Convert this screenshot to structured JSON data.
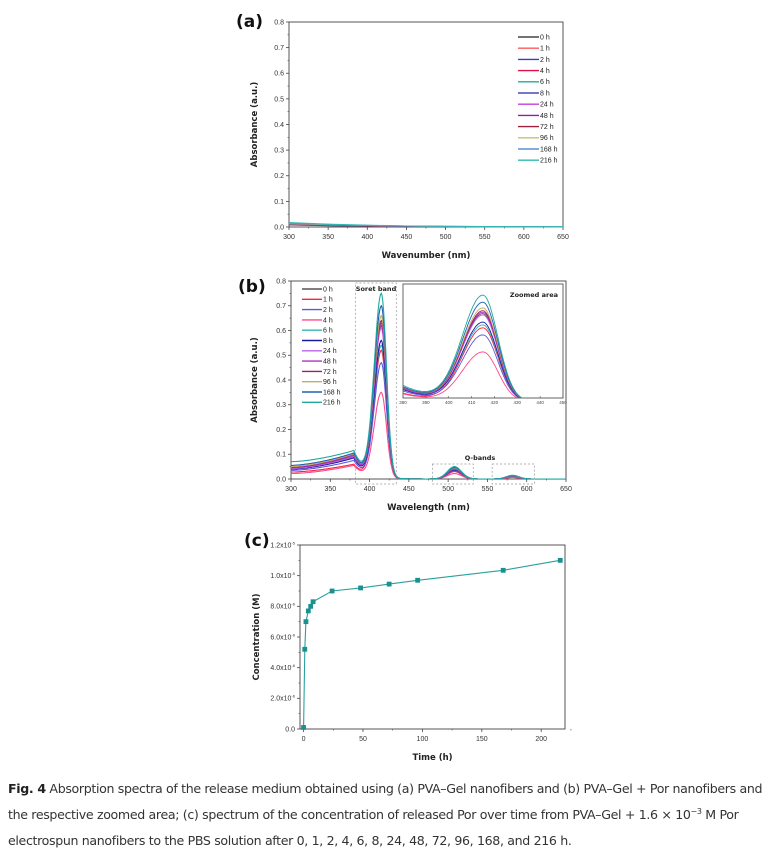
{
  "figure_caption": {
    "label": "Fig. 4",
    "text_part1": " Absorption spectra of the release medium obtained using (a) PVA–Gel nanofibers and (b) PVA–Gel + Por nanofibers and the respective zoomed area; (c) spectrum of the concentration of released Por over time from PVA–Gel + 1.6 × 10",
    "superscript": "−3",
    "text_part2": " M Por electrospun nanofibers to the PBS solution after 0, 1, 2, 4, 6, 8, 24, 48, 72, 96, 168, and 216 h."
  },
  "chart_data": [
    {
      "panel": "(a)",
      "type": "line",
      "title": "",
      "xlabel": "Wavenumber (nm)",
      "ylabel": "Absorbance (a.u.)",
      "xlim": [
        300,
        650
      ],
      "ylim": [
        0.0,
        0.8
      ],
      "xticks": [
        "300",
        "350",
        "400",
        "450",
        "500",
        "550",
        "600",
        "650"
      ],
      "yticks": [
        "0.0",
        "0.1",
        "0.2",
        "0.3",
        "0.4",
        "0.5",
        "0.6",
        "0.7",
        "0.8"
      ],
      "legend_position": "top-right",
      "x": [
        300,
        350,
        400,
        450,
        500,
        550,
        600,
        650
      ],
      "series": [
        {
          "name": "0 h",
          "color": "#444444",
          "values": [
            0.008,
            0.005,
            0.003,
            0.002,
            0.001,
            0.001,
            0.0,
            0.0
          ]
        },
        {
          "name": "1 h",
          "color": "#ff5a5a",
          "values": [
            0.009,
            0.006,
            0.004,
            0.002,
            0.001,
            0.001,
            0.0,
            0.0
          ]
        },
        {
          "name": "2 h",
          "color": "#3a3ad0",
          "values": [
            0.01,
            0.006,
            0.004,
            0.002,
            0.001,
            0.001,
            0.0,
            0.0
          ]
        },
        {
          "name": "4 h",
          "color": "#e0104a",
          "values": [
            0.01,
            0.007,
            0.004,
            0.002,
            0.001,
            0.001,
            0.0,
            0.0
          ]
        },
        {
          "name": "6 h",
          "color": "#2aa89a",
          "values": [
            0.011,
            0.007,
            0.004,
            0.003,
            0.002,
            0.001,
            0.001,
            0.0
          ]
        },
        {
          "name": "8 h",
          "color": "#4a4ab0",
          "values": [
            0.011,
            0.007,
            0.005,
            0.003,
            0.002,
            0.001,
            0.001,
            0.0
          ]
        },
        {
          "name": "24 h",
          "color": "#c040e0",
          "values": [
            0.012,
            0.008,
            0.005,
            0.003,
            0.002,
            0.001,
            0.001,
            0.0
          ]
        },
        {
          "name": "48 h",
          "color": "#8a20b0",
          "values": [
            0.012,
            0.008,
            0.005,
            0.003,
            0.002,
            0.001,
            0.001,
            0.0
          ]
        },
        {
          "name": "72 h",
          "color": "#a02040",
          "values": [
            0.013,
            0.008,
            0.005,
            0.003,
            0.002,
            0.001,
            0.001,
            0.0
          ]
        },
        {
          "name": "96 h",
          "color": "#c8c070",
          "values": [
            0.013,
            0.009,
            0.006,
            0.004,
            0.002,
            0.001,
            0.001,
            0.0
          ]
        },
        {
          "name": "168 h",
          "color": "#5a90d0",
          "values": [
            0.015,
            0.01,
            0.006,
            0.004,
            0.002,
            0.002,
            0.001,
            0.0
          ]
        },
        {
          "name": "216 h",
          "color": "#30b8b0",
          "values": [
            0.017,
            0.011,
            0.007,
            0.004,
            0.003,
            0.002,
            0.001,
            0.001
          ]
        }
      ]
    },
    {
      "panel": "(b)",
      "type": "line",
      "title": "",
      "xlabel": "Wavelength (nm)",
      "ylabel": "Absorbance (a.u.)",
      "xlim": [
        300,
        650
      ],
      "ylim": [
        0.0,
        0.8
      ],
      "xticks": [
        "300",
        "350",
        "400",
        "450",
        "500",
        "550",
        "600",
        "650"
      ],
      "yticks": [
        "0.0",
        "0.1",
        "0.2",
        "0.3",
        "0.4",
        "0.5",
        "0.6",
        "0.7",
        "0.8"
      ],
      "legend_position": "top-left",
      "annotations": [
        "Soret band",
        "Q-bands",
        "Zoomed area"
      ],
      "inset": {
        "xlim": [
          380,
          450
        ],
        "xticks": [
          "380",
          "390",
          "400",
          "410",
          "420",
          "430",
          "440",
          "450"
        ]
      },
      "soret_peak_nm": 415,
      "q_band_peaks_nm": [
        508,
        582
      ],
      "series": [
        {
          "name": "0 h",
          "color": "#555555",
          "baseline_300": 0.045,
          "at_380": 0.09,
          "soret_peak": 0.62,
          "q1_peak": 0.04,
          "q2_peak": 0.012
        },
        {
          "name": "1 h",
          "color": "#ff2040",
          "baseline_300": 0.028,
          "at_380": 0.06,
          "soret_peak": 0.52,
          "q1_peak": 0.03,
          "q2_peak": 0.008
        },
        {
          "name": "2 h",
          "color": "#5a5ae0",
          "baseline_300": 0.035,
          "at_380": 0.075,
          "soret_peak": 0.47,
          "q1_peak": 0.033,
          "q2_peak": 0.01
        },
        {
          "name": "4 h",
          "color": "#ff4a8a",
          "baseline_300": 0.022,
          "at_380": 0.055,
          "soret_peak": 0.35,
          "q1_peak": 0.022,
          "q2_peak": 0.006
        },
        {
          "name": "6 h",
          "color": "#30b8b0",
          "baseline_300": 0.048,
          "at_380": 0.095,
          "soret_peak": 0.54,
          "q1_peak": 0.038,
          "q2_peak": 0.011
        },
        {
          "name": "8 h",
          "color": "#1a1aa0",
          "baseline_300": 0.04,
          "at_380": 0.085,
          "soret_peak": 0.56,
          "q1_peak": 0.037,
          "q2_peak": 0.011
        },
        {
          "name": "24 h",
          "color": "#c060f0",
          "baseline_300": 0.042,
          "at_380": 0.092,
          "soret_peak": 0.61,
          "q1_peak": 0.04,
          "q2_peak": 0.012
        },
        {
          "name": "48 h",
          "color": "#b030c0",
          "baseline_300": 0.045,
          "at_380": 0.095,
          "soret_peak": 0.63,
          "q1_peak": 0.042,
          "q2_peak": 0.012
        },
        {
          "name": "72 h",
          "color": "#a02060",
          "baseline_300": 0.048,
          "at_380": 0.1,
          "soret_peak": 0.64,
          "q1_peak": 0.043,
          "q2_peak": 0.013
        },
        {
          "name": "96 h",
          "color": "#c0b060",
          "baseline_300": 0.05,
          "at_380": 0.102,
          "soret_peak": 0.66,
          "q1_peak": 0.044,
          "q2_peak": 0.013
        },
        {
          "name": "168 h",
          "color": "#2060b0",
          "baseline_300": 0.055,
          "at_380": 0.105,
          "soret_peak": 0.7,
          "q1_peak": 0.046,
          "q2_peak": 0.014
        },
        {
          "name": "216 h",
          "color": "#20a8a0",
          "baseline_300": 0.07,
          "at_380": 0.115,
          "soret_peak": 0.75,
          "q1_peak": 0.05,
          "q2_peak": 0.015
        }
      ]
    },
    {
      "panel": "(c)",
      "type": "line",
      "title": "",
      "xlabel": "Time (h)",
      "ylabel": "Concentration (M)",
      "xlim": [
        -3,
        220
      ],
      "ylim": [
        0.0,
        1.2e-05
      ],
      "xticks": [
        "0",
        "50",
        "100",
        "150",
        "200"
      ],
      "yticks": [
        "0.0",
        "2.0x10-6",
        "4.0x10-6",
        "6.0x10-6",
        "8.0x10-6",
        "1.0x10-5",
        "1.2x10-5"
      ],
      "marker": "square",
      "color": "#1a9090",
      "x": [
        0,
        1,
        2,
        4,
        6,
        8,
        24,
        48,
        72,
        96,
        168,
        216
      ],
      "y": [
        1e-07,
        5.2e-06,
        7e-06,
        7.7e-06,
        8e-06,
        8.3e-06,
        9e-06,
        9.2e-06,
        9.45e-06,
        9.7e-06,
        1.035e-05,
        1.1e-05
      ]
    }
  ]
}
